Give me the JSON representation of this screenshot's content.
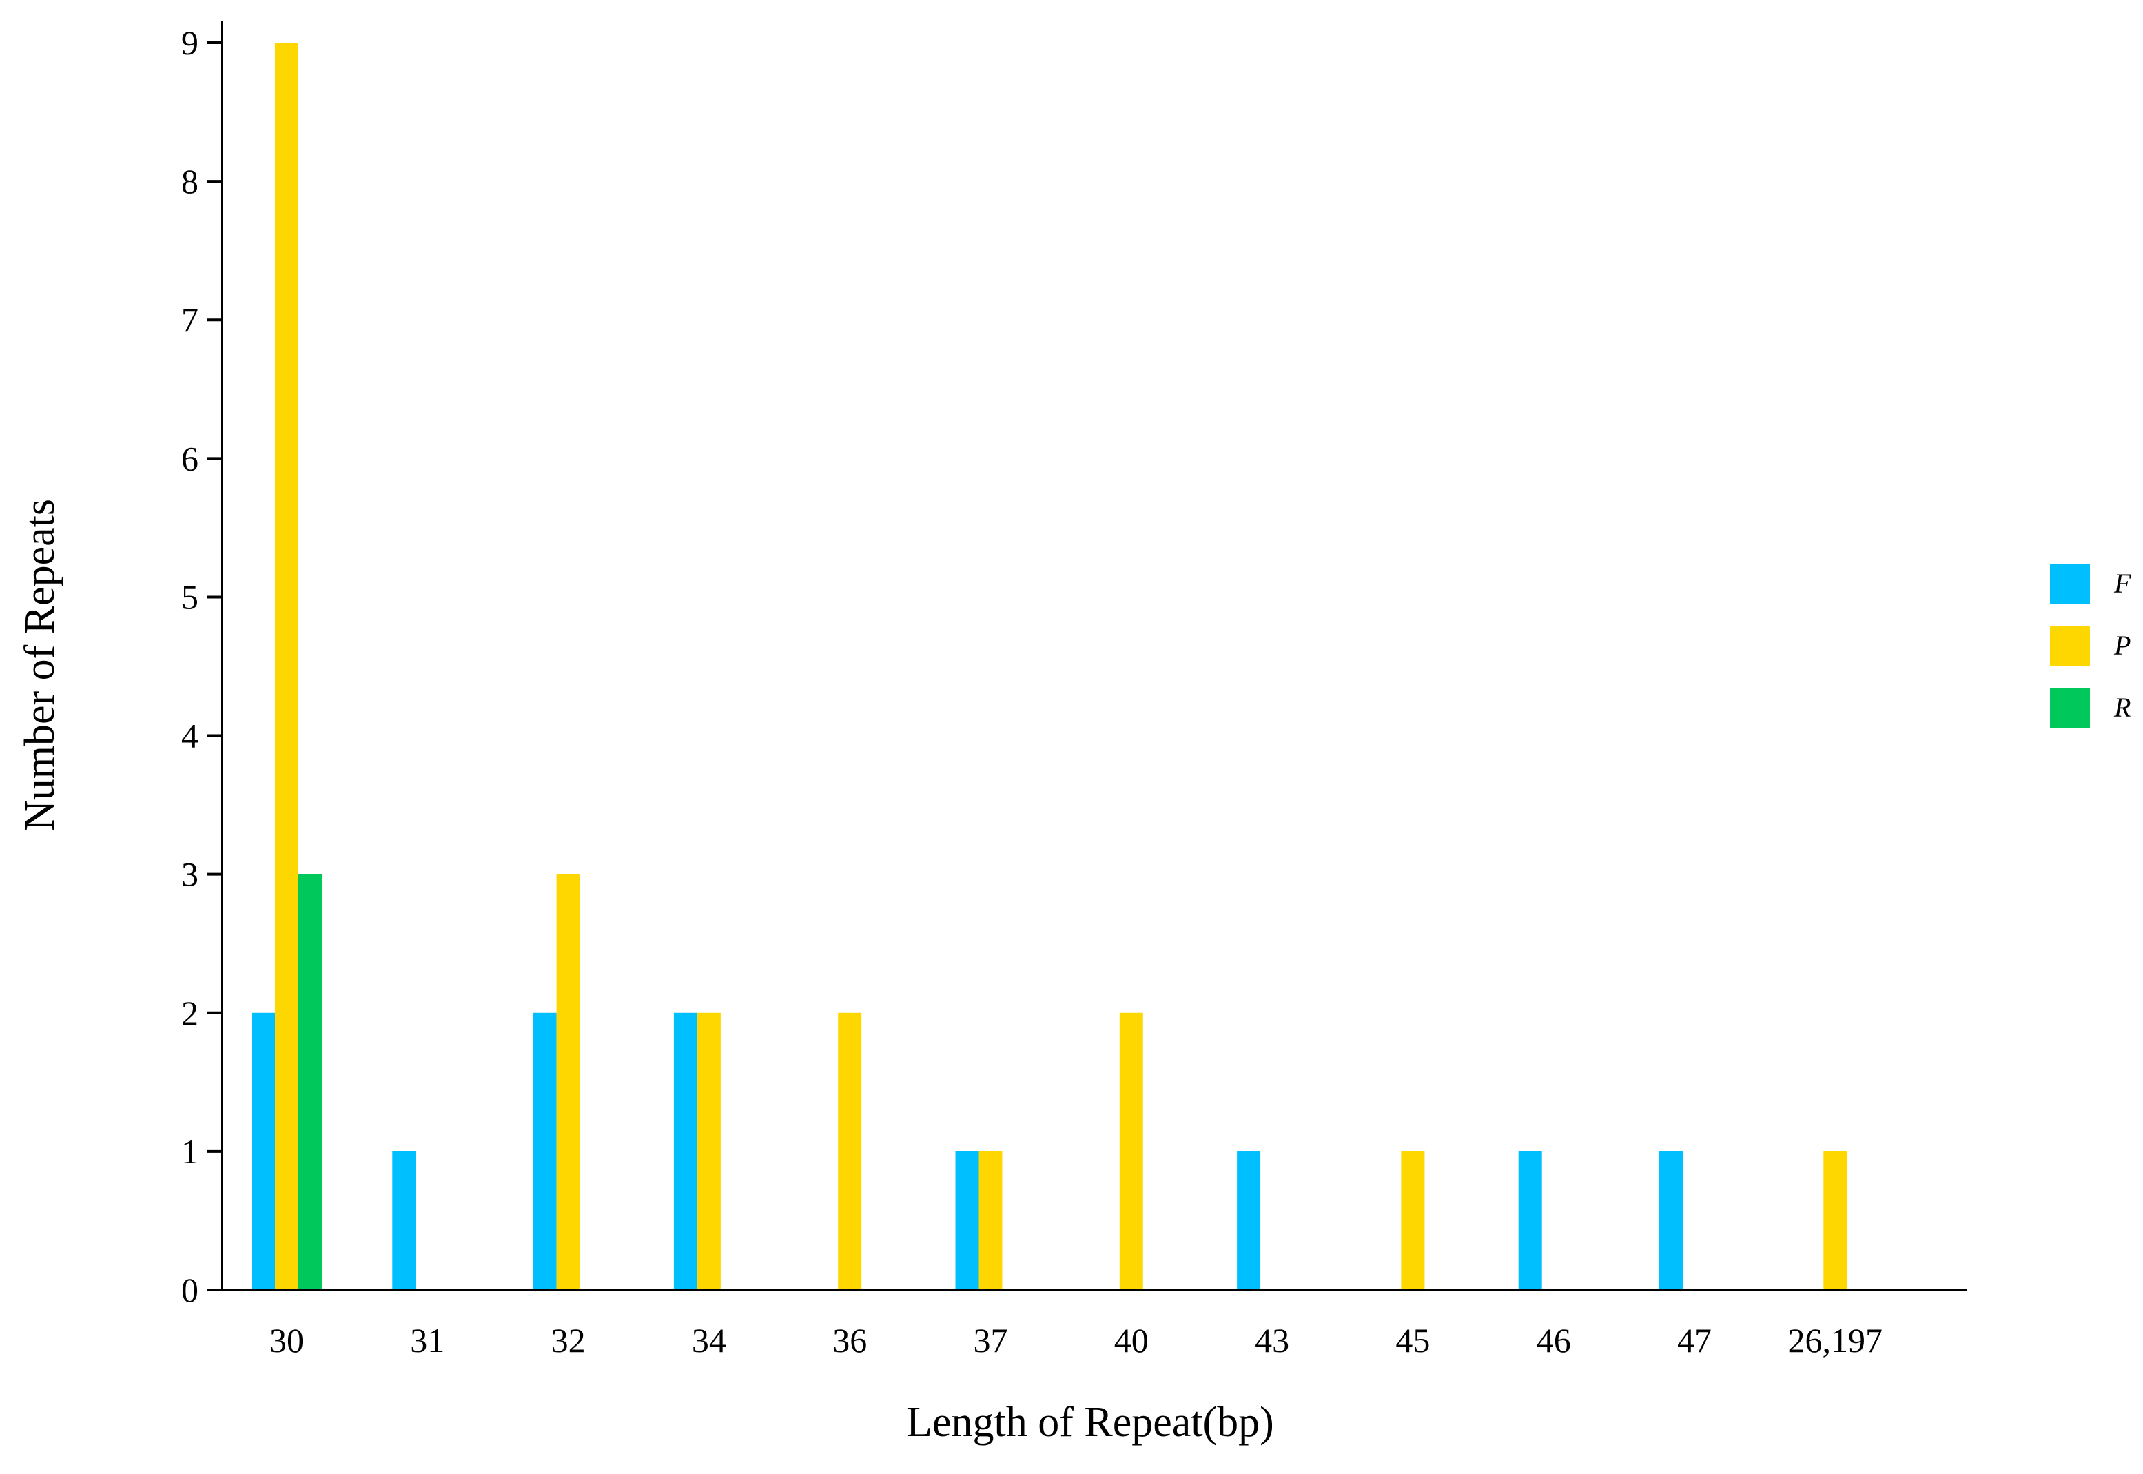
{
  "chart_data": {
    "type": "bar",
    "title": "",
    "xlabel": "Length of Repeat(bp)",
    "ylabel": "Number of Repeats",
    "categories": [
      "30",
      "31",
      "32",
      "34",
      "36",
      "37",
      "40",
      "43",
      "45",
      "46",
      "47",
      "26,197"
    ],
    "series": [
      {
        "name": "F",
        "color": "#00BFFF",
        "values": [
          2,
          1,
          2,
          2,
          0,
          1,
          0,
          1,
          0,
          1,
          1,
          0
        ]
      },
      {
        "name": "P",
        "color": "#FFD700",
        "values": [
          9,
          0,
          3,
          2,
          2,
          1,
          2,
          0,
          1,
          0,
          0,
          1
        ]
      },
      {
        "name": "R",
        "color": "#00C85A",
        "values": [
          3,
          0,
          0,
          0,
          0,
          0,
          0,
          0,
          0,
          0,
          0,
          0
        ]
      }
    ],
    "ylim": [
      0,
      9
    ],
    "yticks": [
      0,
      1,
      2,
      3,
      4,
      5,
      6,
      7,
      8,
      9
    ],
    "grid": false,
    "legend_position": "right"
  }
}
